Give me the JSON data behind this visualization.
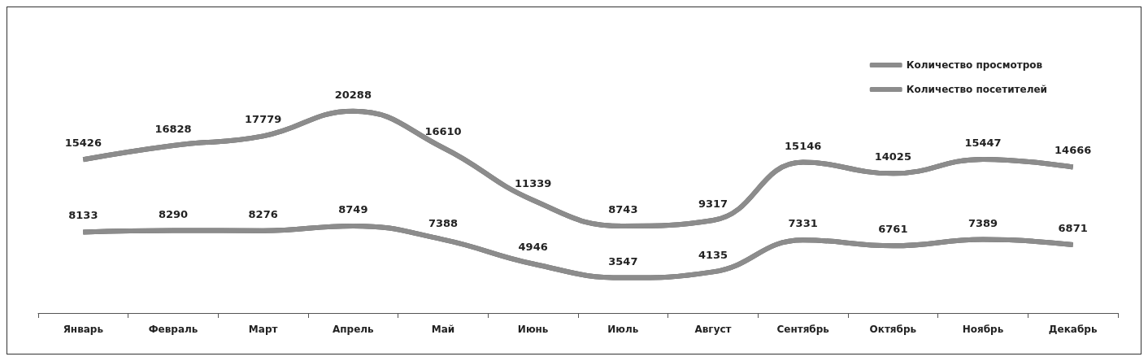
{
  "chart_data": {
    "type": "line",
    "categories": [
      "Январь",
      "Февраль",
      "Март",
      "Апрель",
      "Май",
      "Июнь",
      "Июль",
      "Август",
      "Сентябрь",
      "Октябрь",
      "Ноябрь",
      "Декабрь"
    ],
    "series": [
      {
        "name": "Количество просмотров",
        "color": "#8c8c8c",
        "values": [
          15426,
          16828,
          17779,
          20288,
          16610,
          11339,
          8743,
          9317,
          15146,
          14025,
          15447,
          14666
        ]
      },
      {
        "name": "Количество посетителей",
        "color": "#8c8c8c",
        "values": [
          8133,
          8290,
          8276,
          8749,
          7388,
          4946,
          3547,
          4135,
          7331,
          6761,
          7389,
          6871
        ]
      }
    ],
    "data_labels": true,
    "legend": "top right",
    "marker": "none",
    "grid": false
  }
}
